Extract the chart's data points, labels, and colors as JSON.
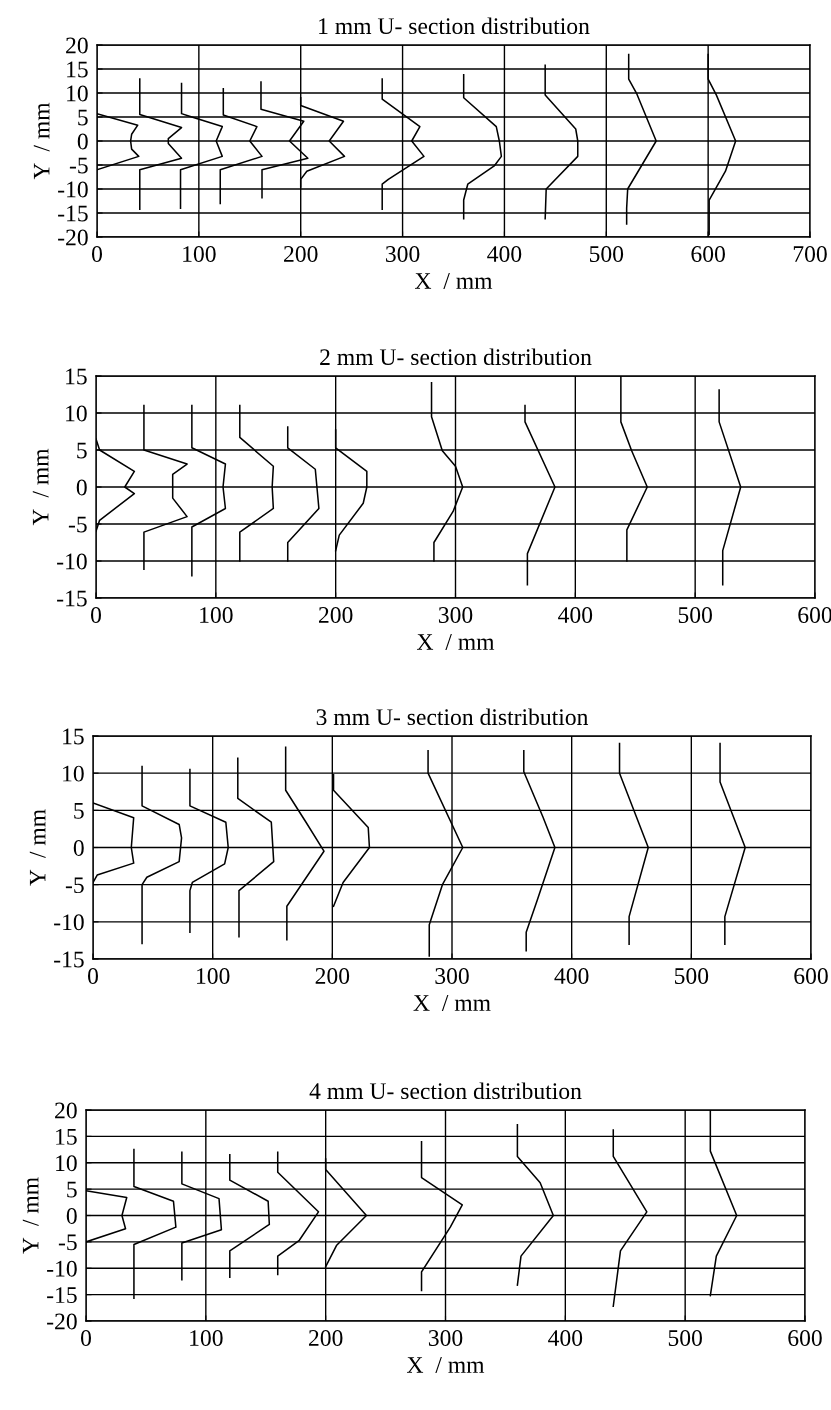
{
  "chart_data": [
    {
      "type": "line",
      "title": "1 mm U- section distribution",
      "xlabel": "X  / mm",
      "ylabel": "Y  / mm",
      "xlim": [
        0,
        700
      ],
      "ylim": [
        -20,
        20
      ],
      "xticks": [
        0,
        100,
        200,
        300,
        400,
        500,
        600,
        700
      ],
      "yticks": [
        -20,
        -15,
        -10,
        -5,
        0,
        5,
        10,
        15,
        20
      ],
      "grid": true,
      "series": [
        {
          "color": "#000000",
          "x": [
            0,
            40,
            34,
            33,
            34,
            41,
            0
          ],
          "values": [
            5.7,
            3.3,
            1.4,
            0,
            -1.7,
            -3.2,
            -6
          ]
        },
        {
          "color": "#000000",
          "x": [
            42,
            42,
            83,
            70,
            70,
            83,
            42,
            42
          ],
          "values": [
            12.9,
            5.5,
            2.8,
            0.5,
            -0.5,
            -3.6,
            -6,
            -14.2
          ]
        },
        {
          "color": "#000000",
          "x": [
            83,
            83,
            90,
            123,
            117,
            123,
            82,
            82
          ],
          "values": [
            12,
            5.7,
            5.2,
            3,
            0,
            -3.2,
            -6,
            -14
          ]
        },
        {
          "color": "#000000",
          "x": [
            124,
            124,
            157,
            150,
            162,
            121,
            121
          ],
          "values": [
            10.9,
            5.4,
            3,
            0,
            -3.2,
            -6,
            -13
          ]
        },
        {
          "color": "#000000",
          "x": [
            161,
            161,
            203,
            189,
            207,
            162,
            162
          ],
          "values": [
            12.3,
            6.6,
            4.1,
            0,
            -3.6,
            -6,
            -11.8
          ]
        },
        {
          "color": "#000000",
          "x": [
            200,
            200,
            242,
            228,
            243,
            206,
            200,
            200
          ],
          "values": [
            9,
            7.4,
            4.1,
            0,
            -3.2,
            -6.3,
            -8,
            -9.6
          ]
        },
        {
          "color": "#000000",
          "x": [
            280,
            280,
            317,
            309,
            321,
            286,
            280,
            280
          ],
          "values": [
            12.9,
            8.7,
            3,
            0,
            -3.2,
            -8,
            -9,
            -14.2
          ]
        },
        {
          "color": "#000000",
          "x": [
            360,
            360,
            392,
            395,
            397,
            390,
            364,
            360,
            360
          ],
          "values": [
            13.8,
            9,
            3,
            0,
            -3.2,
            -5.2,
            -9,
            -12.3,
            -16.2
          ]
        },
        {
          "color": "#000000",
          "x": [
            440,
            440,
            470,
            472,
            472,
            441,
            440
          ],
          "values": [
            15.8,
            9.6,
            2.5,
            0,
            -3.2,
            -10,
            -16.2
          ]
        },
        {
          "color": "#000000",
          "x": [
            522,
            522,
            530,
            549,
            521,
            520,
            520
          ],
          "values": [
            18,
            12.9,
            9.8,
            0,
            -10,
            -14,
            -17.3
          ]
        },
        {
          "color": "#000000",
          "x": [
            600,
            600,
            608,
            627,
            617,
            601,
            601
          ],
          "values": [
            18,
            12.9,
            9.6,
            0,
            -6.3,
            -12.3,
            -19.5
          ]
        }
      ]
    },
    {
      "type": "line",
      "title": "2 mm U- section distribution",
      "xlabel": "X  / mm",
      "ylabel": "Y  / mm",
      "xlim": [
        0,
        600
      ],
      "ylim": [
        -15,
        15
      ],
      "xticks": [
        0,
        100,
        200,
        300,
        400,
        500,
        600
      ],
      "yticks": [
        -15,
        -10,
        -5,
        0,
        5,
        10,
        15
      ],
      "grid": true,
      "series": [
        {
          "color": "#000000",
          "x": [
            0,
            3,
            32,
            24,
            32,
            3,
            0
          ],
          "values": [
            6.5,
            5,
            2.1,
            0,
            -0.9,
            -4.5,
            -6
          ]
        },
        {
          "color": "#000000",
          "x": [
            40,
            40,
            76,
            64,
            64,
            76,
            40,
            40
          ],
          "values": [
            11,
            5,
            3.1,
            1.7,
            -1.5,
            -4,
            -6.1,
            -11.1
          ]
        },
        {
          "color": "#000000",
          "x": [
            80,
            80,
            108,
            106,
            108,
            80,
            80
          ],
          "values": [
            11,
            5.3,
            3.1,
            0,
            -2.9,
            -5.4,
            -12
          ]
        },
        {
          "color": "#000000",
          "x": [
            120,
            120,
            148,
            147,
            148,
            120,
            120
          ],
          "values": [
            11,
            6.7,
            2.8,
            0,
            -2.9,
            -6.1,
            -10
          ]
        },
        {
          "color": "#000000",
          "x": [
            160,
            160,
            183,
            186,
            160,
            160
          ],
          "values": [
            8.1,
            5.3,
            2.4,
            -2.9,
            -7.5,
            -10
          ]
        },
        {
          "color": "#000000",
          "x": [
            200,
            200,
            226,
            226,
            223,
            203,
            200
          ],
          "values": [
            7.7,
            5.3,
            2.1,
            0,
            -2.2,
            -6.5,
            -8.6
          ]
        },
        {
          "color": "#000000",
          "x": [
            280,
            280,
            289,
            300,
            306,
            298,
            282,
            282
          ],
          "values": [
            14.1,
            9.5,
            4.9,
            2.8,
            0,
            -3.3,
            -7.5,
            -10
          ]
        },
        {
          "color": "#000000",
          "x": [
            358,
            358,
            383,
            360,
            360
          ],
          "values": [
            11,
            8.8,
            0,
            -9,
            -13.2
          ]
        },
        {
          "color": "#000000",
          "x": [
            438,
            438,
            447,
            460,
            443,
            443
          ],
          "values": [
            15,
            8.8,
            4.9,
            0,
            -5.8,
            -10
          ]
        },
        {
          "color": "#000000",
          "x": [
            520,
            520,
            538,
            523,
            523
          ],
          "values": [
            13.1,
            8.8,
            0,
            -8.6,
            -13.2
          ]
        }
      ]
    },
    {
      "type": "line",
      "title": "3 mm U- section distribution",
      "xlabel": "X  / mm",
      "ylabel": "Y  / mm",
      "xlim": [
        0,
        600
      ],
      "ylim": [
        -15,
        15
      ],
      "xticks": [
        0,
        100,
        200,
        300,
        400,
        500,
        600
      ],
      "yticks": [
        -15,
        -10,
        -5,
        0,
        5,
        10,
        15
      ],
      "grid": true,
      "series": [
        {
          "color": "#000000",
          "x": [
            0,
            34,
            32,
            34,
            3.5,
            0
          ],
          "values": [
            6,
            4,
            0,
            -2.1,
            -3.7,
            -4.7
          ]
        },
        {
          "color": "#000000",
          "x": [
            41,
            41,
            72,
            74,
            72,
            45,
            41,
            41
          ],
          "values": [
            10.9,
            5.6,
            3.1,
            1.3,
            -1.9,
            -4,
            -5,
            -12.9
          ]
        },
        {
          "color": "#000000",
          "x": [
            81,
            81,
            111,
            113,
            110,
            83,
            81,
            81
          ],
          "values": [
            10.5,
            5.6,
            3.4,
            0,
            -2.2,
            -4.7,
            -5.8,
            -11.4
          ]
        },
        {
          "color": "#000000",
          "x": [
            121,
            121,
            149,
            151,
            122,
            122
          ],
          "values": [
            12,
            6.6,
            3.4,
            -1.9,
            -5.8,
            -12
          ]
        },
        {
          "color": "#000000",
          "x": [
            161,
            161,
            178,
            193,
            162,
            162
          ],
          "values": [
            13.5,
            7.7,
            3.4,
            -0.5,
            -7.9,
            -12.4
          ]
        },
        {
          "color": "#000000",
          "x": [
            201,
            201,
            230,
            231,
            209,
            201
          ],
          "values": [
            9.8,
            7.7,
            2.7,
            0,
            -4.7,
            -7.9
          ]
        },
        {
          "color": "#000000",
          "x": [
            280,
            280,
            309,
            292,
            281,
            281
          ],
          "values": [
            13,
            10,
            0,
            -5,
            -10.4,
            -14.6
          ]
        },
        {
          "color": "#000000",
          "x": [
            360,
            360,
            376,
            386,
            371,
            362,
            362
          ],
          "values": [
            13,
            10.2,
            4.1,
            0,
            -7.2,
            -11.4,
            -13.9
          ]
        },
        {
          "color": "#000000",
          "x": [
            440,
            440,
            464,
            448,
            448
          ],
          "values": [
            14,
            10,
            0,
            -9.3,
            -13
          ]
        },
        {
          "color": "#000000",
          "x": [
            524,
            524,
            545,
            528,
            528
          ],
          "values": [
            14,
            8.8,
            0,
            -9.3,
            -13
          ]
        }
      ]
    },
    {
      "type": "line",
      "title": "4 mm U- section distribution",
      "xlabel": "X  / mm",
      "ylabel": "Y  / mm",
      "xlim": [
        0,
        600
      ],
      "ylim": [
        -20,
        20
      ],
      "xticks": [
        0,
        100,
        200,
        300,
        400,
        500,
        600
      ],
      "yticks": [
        -20,
        -15,
        -10,
        -5,
        0,
        5,
        10,
        15,
        20
      ],
      "grid": true,
      "series": [
        {
          "color": "#000000",
          "x": [
            0,
            34,
            30,
            33,
            0
          ],
          "values": [
            4.7,
            3.4,
            0,
            -2.5,
            -5
          ]
        },
        {
          "color": "#000000",
          "x": [
            40,
            40,
            73,
            75,
            40,
            40
          ],
          "values": [
            12.5,
            5.5,
            2.7,
            -2.2,
            -5.5,
            -15.7
          ]
        },
        {
          "color": "#000000",
          "x": [
            80,
            80,
            111,
            113,
            80,
            80
          ],
          "values": [
            12,
            6,
            3.2,
            -2.7,
            -5.2,
            -12.2
          ]
        },
        {
          "color": "#000000",
          "x": [
            120,
            120,
            152,
            153,
            120,
            120
          ],
          "values": [
            11.5,
            6.7,
            2.7,
            -1.7,
            -6.7,
            -11.7
          ]
        },
        {
          "color": "#000000",
          "x": [
            160,
            160,
            194,
            178,
            160,
            160
          ],
          "values": [
            12,
            8.2,
            0.7,
            -4.7,
            -7.7,
            -11.2
          ]
        },
        {
          "color": "#000000",
          "x": [
            200,
            200,
            234,
            209,
            200
          ],
          "values": [
            10.7,
            8.7,
            0,
            -5.7,
            -9.7
          ]
        },
        {
          "color": "#000000",
          "x": [
            280,
            280,
            314,
            304,
            280,
            280
          ],
          "values": [
            14,
            7.2,
            2,
            -2.2,
            -10.7,
            -14.2
          ]
        },
        {
          "color": "#000000",
          "x": [
            360,
            360,
            379,
            390,
            363,
            360
          ],
          "values": [
            17.2,
            11.2,
            6.2,
            0,
            -7.7,
            -13.2
          ]
        },
        {
          "color": "#000000",
          "x": [
            440,
            440,
            468,
            446,
            440
          ],
          "values": [
            16.2,
            11.2,
            0.7,
            -6.7,
            -17.2
          ]
        },
        {
          "color": "#000000",
          "x": [
            521,
            521,
            543,
            526,
            521
          ],
          "values": [
            20,
            12.2,
            0,
            -7.7,
            -15.2
          ]
        }
      ]
    }
  ]
}
